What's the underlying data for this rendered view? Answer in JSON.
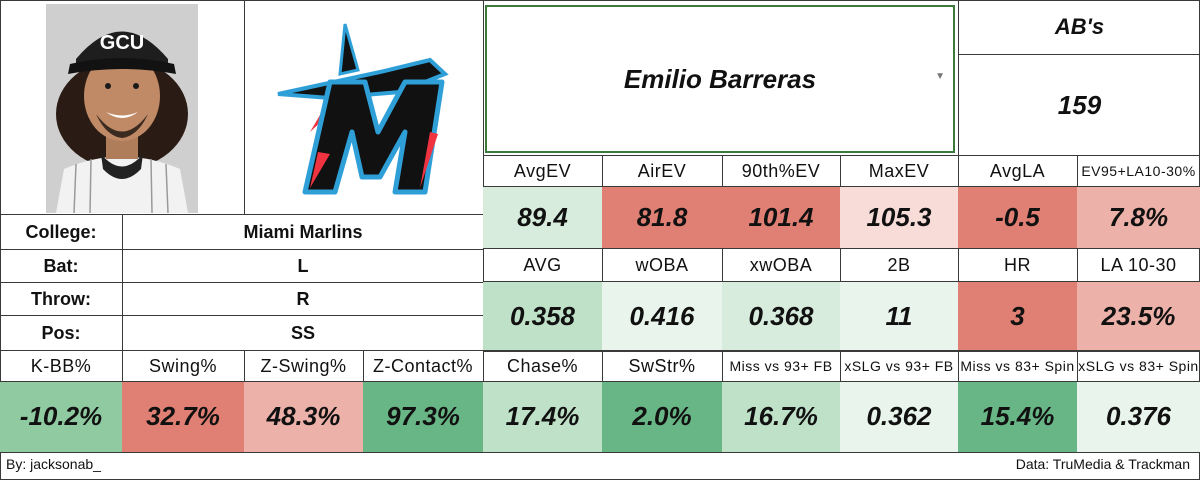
{
  "player": {
    "name": "Emilio Barreras",
    "team_logo": "miami-marlins-logo",
    "cap_text": "GCU",
    "dropdown_icon": "caret-down-icon"
  },
  "ab": {
    "label": "AB's",
    "value": "159"
  },
  "bio": [
    {
      "label": "College:",
      "value": "Miami Marlins"
    },
    {
      "label": "Bat:",
      "value": "L"
    },
    {
      "label": "Throw:",
      "value": "R"
    },
    {
      "label": "Pos:",
      "value": "SS"
    }
  ],
  "batted_ball": {
    "headers": [
      "AvgEV",
      "AirEV",
      "90th%EV",
      "MaxEV",
      "AvgLA",
      "EV95+LA10-30%"
    ],
    "values": [
      "89.4",
      "81.8",
      "101.4",
      "105.3",
      "-0.5",
      "7.8%"
    ]
  },
  "results": {
    "headers": [
      "AVG",
      "wOBA",
      "xwOBA",
      "2B",
      "HR",
      "LA 10-30"
    ],
    "values": [
      "0.358",
      "0.416",
      "0.368",
      "11",
      "3",
      "23.5%"
    ]
  },
  "discipline": {
    "headers": [
      "K-BB%",
      "Swing%",
      "Z-Swing%",
      "Z-Contact%",
      "Chase%",
      "SwStr%",
      "Miss vs 93+ FB",
      "xSLG vs 93+ FB",
      "Miss vs 83+ Spin",
      "xSLG vs 83+ Spin"
    ],
    "values": [
      "-10.2%",
      "32.7%",
      "48.3%",
      "97.3%",
      "17.4%",
      "2.0%",
      "16.7%",
      "0.362",
      "15.4%",
      "0.376"
    ]
  },
  "colors": {
    "green_dark": "#68b585",
    "red_dark": "#e07f73",
    "border": "#3a3a3a"
  },
  "footer": {
    "left": "By: jacksonab_",
    "right": "Data: TruMedia & Trackman"
  }
}
